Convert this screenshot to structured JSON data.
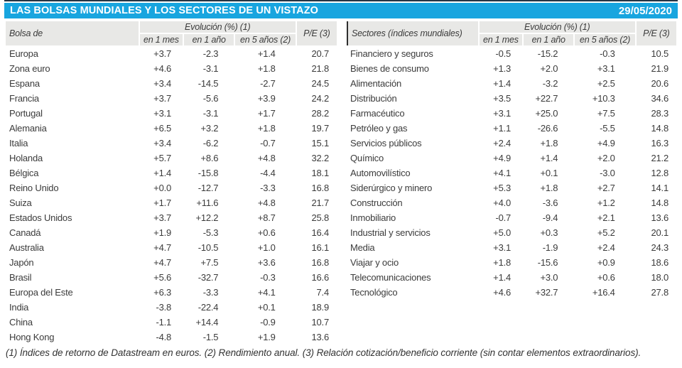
{
  "title_bar": {
    "title": "LAS BOLSAS MUNDIALES Y LOS SECTORES DE UN VISTAZO",
    "date": "29/05/2020"
  },
  "colors": {
    "accent_blue": "#18a5df",
    "header_gray": "#e8e8e6",
    "rule_dark": "#263645",
    "divider_dark": "#2e2e2e",
    "text_dark": "#3b3b3b"
  },
  "tables": {
    "left": {
      "label_header": "Bolsa de",
      "group_header": "Evolución (%) (1)",
      "sub_headers": [
        "en 1 mes",
        "en 1 año",
        "en 5 años (2)"
      ],
      "pe_header": "P/E (3)",
      "rows": [
        {
          "label": "Europa",
          "m1": "+3.7",
          "y1": "-2.3",
          "y5": "+1.4",
          "pe": "20.7"
        },
        {
          "label": "Zona euro",
          "m1": "+4.6",
          "y1": "-3.1",
          "y5": "+1.8",
          "pe": "21.8"
        },
        {
          "label": "Espana",
          "m1": "+3.4",
          "y1": "-14.5",
          "y5": "-2.7",
          "pe": "24.5"
        },
        {
          "label": "Francia",
          "m1": "+3.7",
          "y1": "-5.6",
          "y5": "+3.9",
          "pe": "24.2"
        },
        {
          "label": "Portugal",
          "m1": "+3.1",
          "y1": "-3.1",
          "y5": "+1.7",
          "pe": "28.2"
        },
        {
          "label": "Alemania",
          "m1": "+6.5",
          "y1": "+3.2",
          "y5": "+1.8",
          "pe": "19.7"
        },
        {
          "label": "Italia",
          "m1": "+3.4",
          "y1": "-6.2",
          "y5": "-0.7",
          "pe": "15.1"
        },
        {
          "label": "Holanda",
          "m1": "+5.7",
          "y1": "+8.6",
          "y5": "+4.8",
          "pe": "32.2"
        },
        {
          "label": "Bélgica",
          "m1": "+1.4",
          "y1": "-15.8",
          "y5": "-4.4",
          "pe": "18.1"
        },
        {
          "label": "Reino Unido",
          "m1": "+0.0",
          "y1": "-12.7",
          "y5": "-3.3",
          "pe": "16.8"
        },
        {
          "label": "Suiza",
          "m1": "+1.7",
          "y1": "+11.6",
          "y5": "+4.8",
          "pe": "21.7"
        },
        {
          "label": "Estados Unidos",
          "m1": "+3.7",
          "y1": "+12.2",
          "y5": "+8.7",
          "pe": "25.8"
        },
        {
          "label": "Canadá",
          "m1": "+1.9",
          "y1": "-5.3",
          "y5": "+0.6",
          "pe": "16.4"
        },
        {
          "label": "Australia",
          "m1": "+4.7",
          "y1": "-10.5",
          "y5": "+1.0",
          "pe": "16.1"
        },
        {
          "label": "Japón",
          "m1": "+4.7",
          "y1": "+7.5",
          "y5": "+3.6",
          "pe": "16.8"
        },
        {
          "label": "Brasil",
          "m1": "+5.6",
          "y1": "-32.7",
          "y5": "-0.3",
          "pe": "16.6"
        },
        {
          "label": "Europa del Este",
          "m1": "+6.3",
          "y1": "-3.3",
          "y5": "+4.1",
          "pe": "7.4"
        },
        {
          "label": "India",
          "m1": "-3.8",
          "y1": "-22.4",
          "y5": "+0.1",
          "pe": "18.9"
        },
        {
          "label": "China",
          "m1": "-1.1",
          "y1": "+14.4",
          "y5": "-0.9",
          "pe": "10.7"
        },
        {
          "label": "Hong Kong",
          "m1": "-4.8",
          "y1": "-1.5",
          "y5": "+1.9",
          "pe": "13.6"
        }
      ]
    },
    "right": {
      "label_header": "Sectores (índices mundiales)",
      "group_header": "Evolución (%) (1)",
      "sub_headers": [
        "en 1 mes",
        "en 1 año",
        "en 5 años (2)"
      ],
      "pe_header": "P/E (3)",
      "rows": [
        {
          "label": "Financiero y seguros",
          "m1": "-0.5",
          "y1": "-15.2",
          "y5": "-0.3",
          "pe": "10.5"
        },
        {
          "label": "Bienes de consumo",
          "m1": "+1.3",
          "y1": "+2.0",
          "y5": "+3.1",
          "pe": "21.9"
        },
        {
          "label": "Alimentación",
          "m1": "+1.4",
          "y1": "-3.2",
          "y5": "+2.5",
          "pe": "20.6"
        },
        {
          "label": "Distribución",
          "m1": "+3.5",
          "y1": "+22.7",
          "y5": "+10.3",
          "pe": "34.6"
        },
        {
          "label": "Farmacéutico",
          "m1": "+3.1",
          "y1": "+25.0",
          "y5": "+7.5",
          "pe": "28.3"
        },
        {
          "label": "Petróleo y gas",
          "m1": "+1.1",
          "y1": "-26.6",
          "y5": "-5.5",
          "pe": "14.8"
        },
        {
          "label": "Servicios públicos",
          "m1": "+2.4",
          "y1": "+1.8",
          "y5": "+4.9",
          "pe": "16.3"
        },
        {
          "label": "Químico",
          "m1": "+4.9",
          "y1": "+1.4",
          "y5": "+2.0",
          "pe": "21.2"
        },
        {
          "label": "Automovilístico",
          "m1": "+4.1",
          "y1": "+0.1",
          "y5": "-3.0",
          "pe": "12.8"
        },
        {
          "label": "Siderúrgico y minero",
          "m1": "+5.3",
          "y1": "+1.8",
          "y5": "+2.7",
          "pe": "14.1"
        },
        {
          "label": "Construcción",
          "m1": "+4.0",
          "y1": "-3.6",
          "y5": "+1.2",
          "pe": "14.8"
        },
        {
          "label": "Inmobiliario",
          "m1": "-0.7",
          "y1": "-9.4",
          "y5": "+2.1",
          "pe": "13.6"
        },
        {
          "label": "Industrial y servicios",
          "m1": "+5.0",
          "y1": "+0.3",
          "y5": "+5.2",
          "pe": "20.1"
        },
        {
          "label": "Media",
          "m1": "+3.1",
          "y1": "-1.9",
          "y5": "+2.4",
          "pe": "24.3"
        },
        {
          "label": "Viajar y ocio",
          "m1": "+1.8",
          "y1": "-15.6",
          "y5": "+0.9",
          "pe": "18.6"
        },
        {
          "label": "Telecomunicaciones",
          "m1": "+1.4",
          "y1": "+3.0",
          "y5": "+0.6",
          "pe": "18.0"
        },
        {
          "label": "Tecnológico",
          "m1": "+4.6",
          "y1": "+32.7",
          "y5": "+16.4",
          "pe": "27.8"
        }
      ]
    }
  },
  "footnote": "(1) Índices de retorno de Datastream en euros. (2) Rendimiento anual. (3) Relación cotización/beneficio corriente (sin contar elementos extraordinarios)."
}
